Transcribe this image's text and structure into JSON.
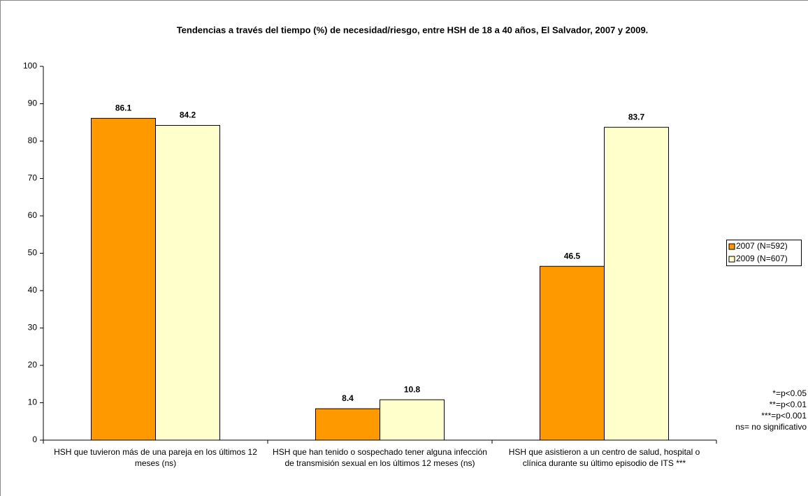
{
  "chart_data": {
    "type": "bar",
    "title": "Tendencias a través del tiempo (%) de necesidad/riesgo, entre HSH de 18 a 40 años, El Salvador, 2007 y 2009.",
    "categories": [
      "HSH que tuvieron más de una pareja en los últimos 12 meses (ns)",
      "HSH que han tenido o sospechado tener alguna infección de transmisión sexual en los últimos 12 meses (ns)",
      "HSH que asistieron a un centro de salud, hospital o clínica durante su último episodio de ITS ***"
    ],
    "series": [
      {
        "name": "2007 (N=592)",
        "color": "#FF9900",
        "values": [
          86.1,
          8.4,
          46.5
        ]
      },
      {
        "name": "2009 (N=607)",
        "color": "#FFFFCC",
        "values": [
          84.2,
          10.8,
          83.7
        ]
      }
    ],
    "ylim": [
      0,
      100
    ],
    "yticks": [
      0,
      10,
      20,
      30,
      40,
      50,
      60,
      70,
      80,
      90,
      100
    ],
    "legend": "right",
    "notes": [
      "*=p<0.05",
      "**=p<0.01",
      "***=p<0.001",
      "ns= no significativo"
    ]
  }
}
